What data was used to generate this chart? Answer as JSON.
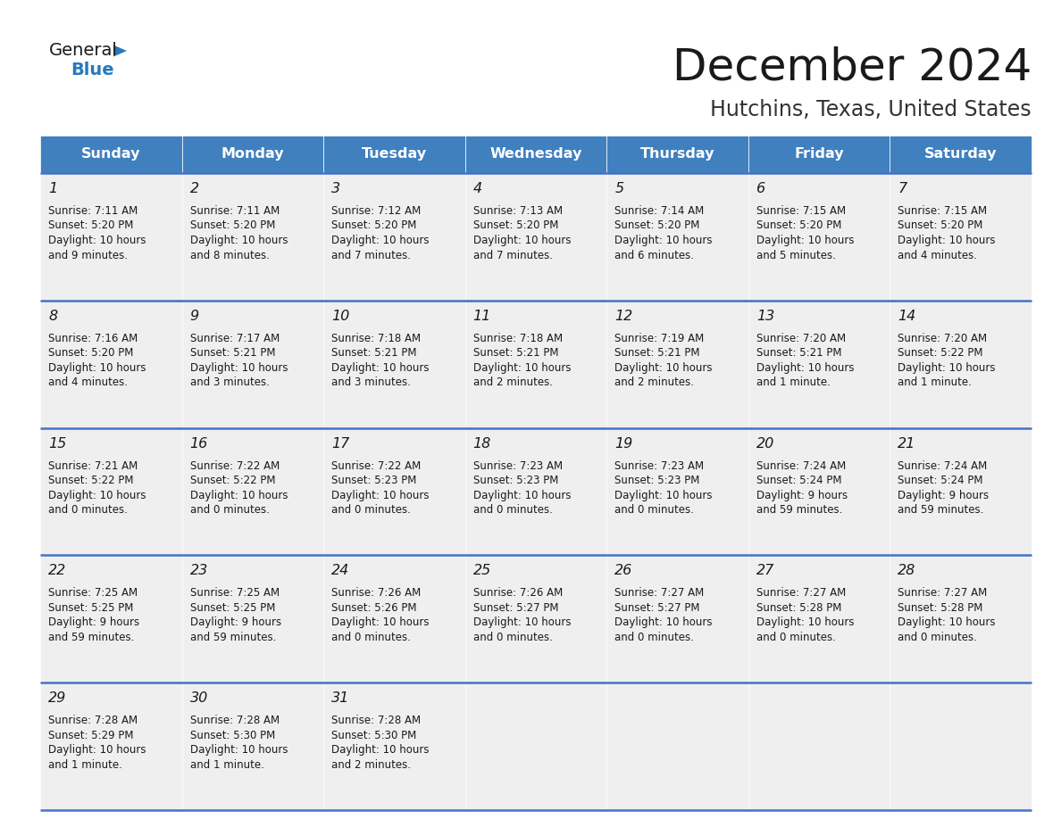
{
  "title": "December 2024",
  "subtitle": "Hutchins, Texas, United States",
  "days_of_week": [
    "Sunday",
    "Monday",
    "Tuesday",
    "Wednesday",
    "Thursday",
    "Friday",
    "Saturday"
  ],
  "header_bg": "#4080BF",
  "header_text": "#FFFFFF",
  "cell_bg_light": "#EFEFEF",
  "cell_bg_white": "#FFFFFF",
  "border_color": "#4472C4",
  "title_color": "#1a1a1a",
  "subtitle_color": "#333333",
  "text_color": "#1a1a1a",
  "calendar_data": [
    [
      {
        "day": 1,
        "sunrise": "7:11 AM",
        "sunset": "5:20 PM",
        "dl1": "Daylight: 10 hours",
        "dl2": "and 9 minutes."
      },
      {
        "day": 2,
        "sunrise": "7:11 AM",
        "sunset": "5:20 PM",
        "dl1": "Daylight: 10 hours",
        "dl2": "and 8 minutes."
      },
      {
        "day": 3,
        "sunrise": "7:12 AM",
        "sunset": "5:20 PM",
        "dl1": "Daylight: 10 hours",
        "dl2": "and 7 minutes."
      },
      {
        "day": 4,
        "sunrise": "7:13 AM",
        "sunset": "5:20 PM",
        "dl1": "Daylight: 10 hours",
        "dl2": "and 7 minutes."
      },
      {
        "day": 5,
        "sunrise": "7:14 AM",
        "sunset": "5:20 PM",
        "dl1": "Daylight: 10 hours",
        "dl2": "and 6 minutes."
      },
      {
        "day": 6,
        "sunrise": "7:15 AM",
        "sunset": "5:20 PM",
        "dl1": "Daylight: 10 hours",
        "dl2": "and 5 minutes."
      },
      {
        "day": 7,
        "sunrise": "7:15 AM",
        "sunset": "5:20 PM",
        "dl1": "Daylight: 10 hours",
        "dl2": "and 4 minutes."
      }
    ],
    [
      {
        "day": 8,
        "sunrise": "7:16 AM",
        "sunset": "5:20 PM",
        "dl1": "Daylight: 10 hours",
        "dl2": "and 4 minutes."
      },
      {
        "day": 9,
        "sunrise": "7:17 AM",
        "sunset": "5:21 PM",
        "dl1": "Daylight: 10 hours",
        "dl2": "and 3 minutes."
      },
      {
        "day": 10,
        "sunrise": "7:18 AM",
        "sunset": "5:21 PM",
        "dl1": "Daylight: 10 hours",
        "dl2": "and 3 minutes."
      },
      {
        "day": 11,
        "sunrise": "7:18 AM",
        "sunset": "5:21 PM",
        "dl1": "Daylight: 10 hours",
        "dl2": "and 2 minutes."
      },
      {
        "day": 12,
        "sunrise": "7:19 AM",
        "sunset": "5:21 PM",
        "dl1": "Daylight: 10 hours",
        "dl2": "and 2 minutes."
      },
      {
        "day": 13,
        "sunrise": "7:20 AM",
        "sunset": "5:21 PM",
        "dl1": "Daylight: 10 hours",
        "dl2": "and 1 minute."
      },
      {
        "day": 14,
        "sunrise": "7:20 AM",
        "sunset": "5:22 PM",
        "dl1": "Daylight: 10 hours",
        "dl2": "and 1 minute."
      }
    ],
    [
      {
        "day": 15,
        "sunrise": "7:21 AM",
        "sunset": "5:22 PM",
        "dl1": "Daylight: 10 hours",
        "dl2": "and 0 minutes."
      },
      {
        "day": 16,
        "sunrise": "7:22 AM",
        "sunset": "5:22 PM",
        "dl1": "Daylight: 10 hours",
        "dl2": "and 0 minutes."
      },
      {
        "day": 17,
        "sunrise": "7:22 AM",
        "sunset": "5:23 PM",
        "dl1": "Daylight: 10 hours",
        "dl2": "and 0 minutes."
      },
      {
        "day": 18,
        "sunrise": "7:23 AM",
        "sunset": "5:23 PM",
        "dl1": "Daylight: 10 hours",
        "dl2": "and 0 minutes."
      },
      {
        "day": 19,
        "sunrise": "7:23 AM",
        "sunset": "5:23 PM",
        "dl1": "Daylight: 10 hours",
        "dl2": "and 0 minutes."
      },
      {
        "day": 20,
        "sunrise": "7:24 AM",
        "sunset": "5:24 PM",
        "dl1": "Daylight: 9 hours",
        "dl2": "and 59 minutes."
      },
      {
        "day": 21,
        "sunrise": "7:24 AM",
        "sunset": "5:24 PM",
        "dl1": "Daylight: 9 hours",
        "dl2": "and 59 minutes."
      }
    ],
    [
      {
        "day": 22,
        "sunrise": "7:25 AM",
        "sunset": "5:25 PM",
        "dl1": "Daylight: 9 hours",
        "dl2": "and 59 minutes."
      },
      {
        "day": 23,
        "sunrise": "7:25 AM",
        "sunset": "5:25 PM",
        "dl1": "Daylight: 9 hours",
        "dl2": "and 59 minutes."
      },
      {
        "day": 24,
        "sunrise": "7:26 AM",
        "sunset": "5:26 PM",
        "dl1": "Daylight: 10 hours",
        "dl2": "and 0 minutes."
      },
      {
        "day": 25,
        "sunrise": "7:26 AM",
        "sunset": "5:27 PM",
        "dl1": "Daylight: 10 hours",
        "dl2": "and 0 minutes."
      },
      {
        "day": 26,
        "sunrise": "7:27 AM",
        "sunset": "5:27 PM",
        "dl1": "Daylight: 10 hours",
        "dl2": "and 0 minutes."
      },
      {
        "day": 27,
        "sunrise": "7:27 AM",
        "sunset": "5:28 PM",
        "dl1": "Daylight: 10 hours",
        "dl2": "and 0 minutes."
      },
      {
        "day": 28,
        "sunrise": "7:27 AM",
        "sunset": "5:28 PM",
        "dl1": "Daylight: 10 hours",
        "dl2": "and 0 minutes."
      }
    ],
    [
      {
        "day": 29,
        "sunrise": "7:28 AM",
        "sunset": "5:29 PM",
        "dl1": "Daylight: 10 hours",
        "dl2": "and 1 minute."
      },
      {
        "day": 30,
        "sunrise": "7:28 AM",
        "sunset": "5:30 PM",
        "dl1": "Daylight: 10 hours",
        "dl2": "and 1 minute."
      },
      {
        "day": 31,
        "sunrise": "7:28 AM",
        "sunset": "5:30 PM",
        "dl1": "Daylight: 10 hours",
        "dl2": "and 2 minutes."
      },
      null,
      null,
      null,
      null
    ]
  ],
  "logo_color_general": "#1a1a1a",
  "logo_color_blue": "#2878BE"
}
